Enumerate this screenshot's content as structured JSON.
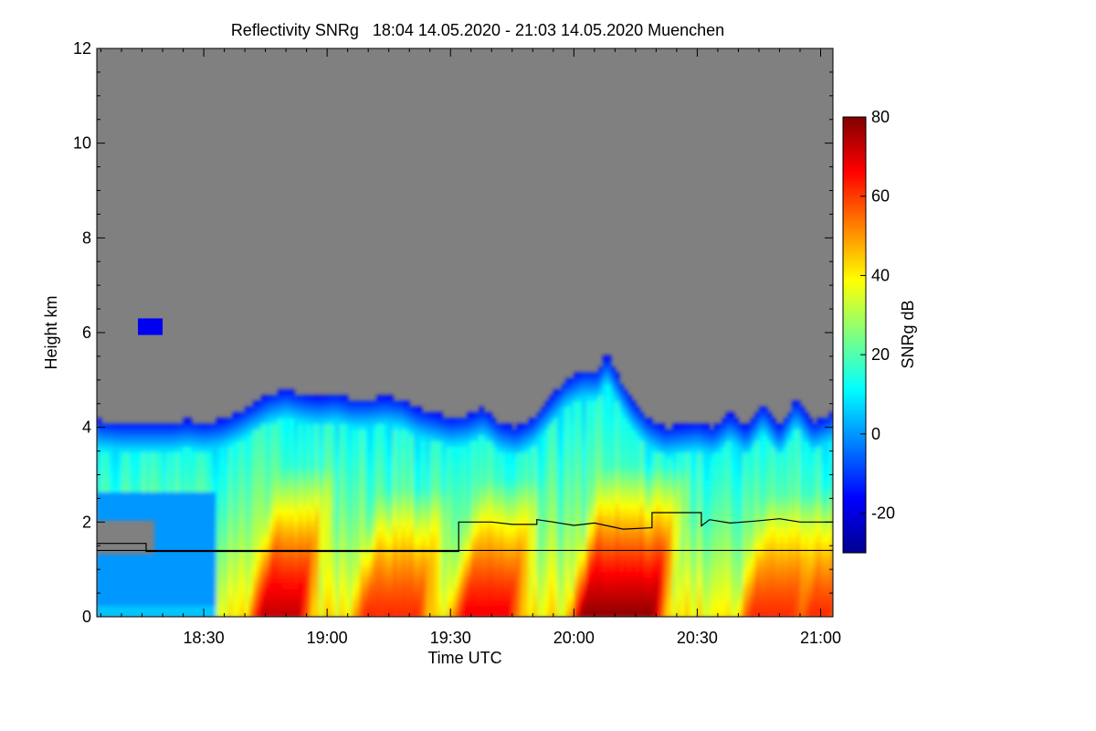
{
  "chart_data": {
    "type": "heatmap",
    "title": "Reflectivity SNRg   18:04 14.05.2020 - 21:03 14.05.2020 Muenchen",
    "xlabel": "Time UTC",
    "ylabel": "Height km",
    "x_range_minutes": [
      1084,
      1263
    ],
    "xlim_labels": [
      "18:04",
      "21:03"
    ],
    "xticks": [
      {
        "label": "18:30",
        "minutes": 1110
      },
      {
        "label": "19:00",
        "minutes": 1140
      },
      {
        "label": "19:30",
        "minutes": 1170
      },
      {
        "label": "20:00",
        "minutes": 1200
      },
      {
        "label": "20:30",
        "minutes": 1230
      },
      {
        "label": "21:00",
        "minutes": 1260
      }
    ],
    "ylim": [
      0,
      12
    ],
    "yticks": [
      0,
      2,
      4,
      6,
      8,
      10,
      12
    ],
    "background_color": "#808080",
    "colorbar": {
      "label": "SNRg dB",
      "range": [
        -30,
        80
      ],
      "ticks": [
        -20,
        0,
        20,
        40,
        60,
        80
      ],
      "colormap": [
        "#00008f",
        "#0000ff",
        "#0080ff",
        "#00ffff",
        "#80ff80",
        "#ffff00",
        "#ff8000",
        "#ff0000",
        "#800000"
      ]
    },
    "echo_top_km": [
      {
        "t": 1084,
        "h": 4.15
      },
      {
        "t": 1090,
        "h": 4.1
      },
      {
        "t": 1096,
        "h": 4.1
      },
      {
        "t": 1102,
        "h": 4.1
      },
      {
        "t": 1106,
        "h": 4.15
      },
      {
        "t": 1110,
        "h": 4.1
      },
      {
        "t": 1114,
        "h": 4.15
      },
      {
        "t": 1118,
        "h": 4.3
      },
      {
        "t": 1122,
        "h": 4.5
      },
      {
        "t": 1126,
        "h": 4.7
      },
      {
        "t": 1130,
        "h": 4.8
      },
      {
        "t": 1134,
        "h": 4.7
      },
      {
        "t": 1138,
        "h": 4.65
      },
      {
        "t": 1142,
        "h": 4.7
      },
      {
        "t": 1146,
        "h": 4.6
      },
      {
        "t": 1150,
        "h": 4.6
      },
      {
        "t": 1154,
        "h": 4.65
      },
      {
        "t": 1158,
        "h": 4.6
      },
      {
        "t": 1162,
        "h": 4.4
      },
      {
        "t": 1166,
        "h": 4.3
      },
      {
        "t": 1170,
        "h": 4.2
      },
      {
        "t": 1174,
        "h": 4.25
      },
      {
        "t": 1178,
        "h": 4.4
      },
      {
        "t": 1182,
        "h": 4.1
      },
      {
        "t": 1186,
        "h": 4.0
      },
      {
        "t": 1190,
        "h": 4.2
      },
      {
        "t": 1194,
        "h": 4.6
      },
      {
        "t": 1198,
        "h": 5.0
      },
      {
        "t": 1202,
        "h": 5.2
      },
      {
        "t": 1206,
        "h": 5.2
      },
      {
        "t": 1208,
        "h": 5.55
      },
      {
        "t": 1210,
        "h": 5.2
      },
      {
        "t": 1214,
        "h": 4.6
      },
      {
        "t": 1218,
        "h": 4.2
      },
      {
        "t": 1222,
        "h": 4.0
      },
      {
        "t": 1226,
        "h": 4.05
      },
      {
        "t": 1230,
        "h": 4.1
      },
      {
        "t": 1234,
        "h": 4.0
      },
      {
        "t": 1238,
        "h": 4.3
      },
      {
        "t": 1242,
        "h": 4.0
      },
      {
        "t": 1246,
        "h": 4.5
      },
      {
        "t": 1250,
        "h": 4.0
      },
      {
        "t": 1254,
        "h": 4.6
      },
      {
        "t": 1258,
        "h": 4.1
      },
      {
        "t": 1263,
        "h": 4.3
      }
    ],
    "high_echo_cores": [
      {
        "t_start": 1123,
        "t_end": 1134,
        "top_km": 2.0,
        "peak_db": 70
      },
      {
        "t_start": 1148,
        "t_end": 1163,
        "top_km": 1.5,
        "peak_db": 60
      },
      {
        "t_start": 1172,
        "t_end": 1185,
        "top_km": 1.7,
        "peak_db": 65
      },
      {
        "t_start": 1201,
        "t_end": 1220,
        "top_km": 2.0,
        "peak_db": 75
      },
      {
        "t_start": 1242,
        "t_end": 1254,
        "top_km": 1.4,
        "peak_db": 60
      },
      {
        "t_start": 1256,
        "t_end": 1263,
        "top_km": 1.6,
        "peak_db": 60
      }
    ],
    "upper_cloud_patch": {
      "t_start": 1094,
      "t_end": 1100,
      "h_bottom_km": 5.95,
      "h_top_km": 6.3
    },
    "lines": {
      "constant_height_km": 1.4,
      "step_line": [
        {
          "t": 1084,
          "h": 1.55
        },
        {
          "t": 1096,
          "h": 1.55
        },
        {
          "t": 1096,
          "h": 1.38
        },
        {
          "t": 1172,
          "h": 1.38
        },
        {
          "t": 1172,
          "h": 2.0
        },
        {
          "t": 1180,
          "h": 2.0
        },
        {
          "t": 1185,
          "h": 1.95
        },
        {
          "t": 1191,
          "h": 1.95
        },
        {
          "t": 1191,
          "h": 2.05
        },
        {
          "t": 1195,
          "h": 2.0
        },
        {
          "t": 1200,
          "h": 1.93
        },
        {
          "t": 1205,
          "h": 1.98
        },
        {
          "t": 1212,
          "h": 1.85
        },
        {
          "t": 1219,
          "h": 1.88
        },
        {
          "t": 1219,
          "h": 2.2
        },
        {
          "t": 1231,
          "h": 2.2
        },
        {
          "t": 1231,
          "h": 1.92
        },
        {
          "t": 1233,
          "h": 2.05
        },
        {
          "t": 1238,
          "h": 1.98
        },
        {
          "t": 1244,
          "h": 2.02
        },
        {
          "t": 1250,
          "h": 2.07
        },
        {
          "t": 1255,
          "h": 2.0
        },
        {
          "t": 1263,
          "h": 2.0
        }
      ]
    }
  }
}
